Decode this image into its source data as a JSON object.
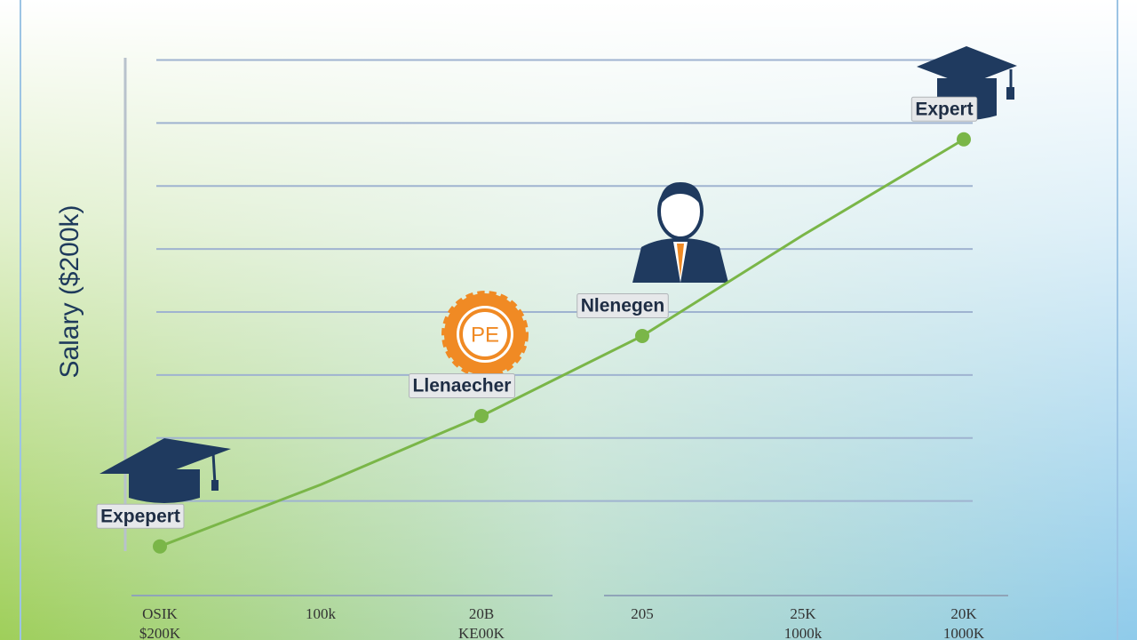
{
  "chart_data": {
    "type": "line",
    "y_label": "Salary ($200k)",
    "categories": [
      "OSIK",
      "100k",
      "20B",
      "205",
      "25K",
      "20K"
    ],
    "category_sublabels": [
      "$200K",
      null,
      "KE00K",
      null,
      "1000k",
      "1000K"
    ],
    "series": [
      {
        "name": "Salary",
        "color": "#7ab648",
        "values": [
          0.78,
          1.76,
          2.85,
          4.12,
          5.72,
          7.24
        ]
      }
    ],
    "annotations": [
      {
        "text": "Expepert",
        "at": 0
      },
      {
        "text": "Llenaecher",
        "at": 2
      },
      {
        "text": "Nlenegen",
        "at": 3
      },
      {
        "text": "Expert",
        "at": 5
      }
    ],
    "badge_text": "PE",
    "ylim": [
      0,
      9
    ],
    "gridlines": [
      1.5,
      2.5,
      3.5,
      4.5,
      5.5,
      6.5,
      7.5,
      8.5
    ]
  }
}
